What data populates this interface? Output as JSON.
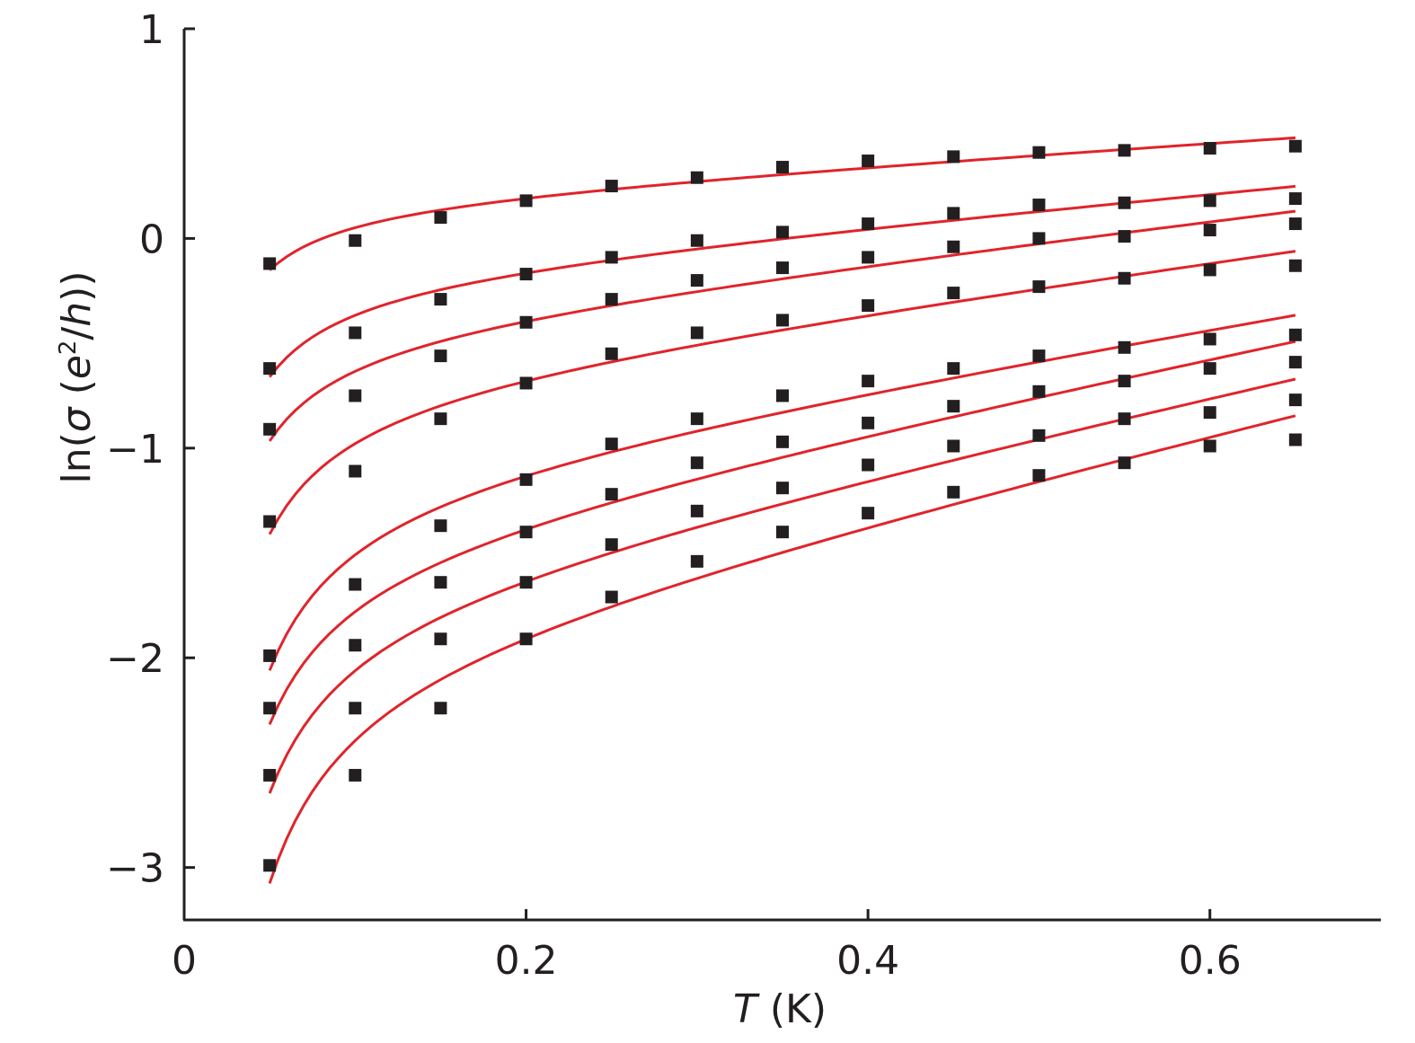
{
  "chart_data": {
    "type": "scatter",
    "xlim": [
      0,
      0.7
    ],
    "ylim": [
      -3.25,
      1
    ],
    "x_ticks": [
      {
        "value": 0,
        "label": "0"
      },
      {
        "value": 0.2,
        "label": "0.2"
      },
      {
        "value": 0.4,
        "label": "0.4"
      },
      {
        "value": 0.6,
        "label": "0.6"
      }
    ],
    "y_ticks": [
      {
        "value": 1,
        "label": "1"
      },
      {
        "value": 0,
        "label": "0"
      },
      {
        "value": -1,
        "label": "−1"
      },
      {
        "value": -2,
        "label": "−2"
      },
      {
        "value": -3,
        "label": "−3"
      }
    ],
    "xlabel": {
      "italic": "T",
      "rest": " (K)"
    },
    "ylabel": {
      "p1": "ln(",
      "sigma": "σ",
      "p2": " (",
      "e": "e",
      "sup": "2",
      "p3": "/",
      "h": "h",
      "p4": "))"
    },
    "grid": false,
    "legend": "none",
    "marker_color": "#231f20",
    "fit_color": "#e0242b",
    "x": [
      0.05,
      0.1,
      0.15,
      0.2,
      0.25,
      0.3,
      0.35,
      0.4,
      0.45,
      0.5,
      0.55,
      0.6,
      0.65
    ],
    "series": [
      {
        "values": [
          -0.12,
          -0.01,
          0.1,
          0.18,
          0.25,
          0.29,
          0.34,
          0.37,
          0.39,
          0.41,
          0.42,
          0.43,
          0.44
        ]
      },
      {
        "values": [
          -0.62,
          -0.45,
          -0.29,
          -0.17,
          -0.09,
          -0.01,
          0.03,
          0.07,
          0.12,
          0.16,
          0.17,
          0.18,
          0.19
        ]
      },
      {
        "values": [
          -0.91,
          -0.75,
          -0.56,
          -0.4,
          -0.29,
          -0.2,
          -0.14,
          -0.09,
          -0.04,
          0.0,
          0.01,
          0.04,
          0.07
        ]
      },
      {
        "values": [
          -1.35,
          -1.11,
          -0.86,
          -0.69,
          -0.55,
          -0.45,
          -0.39,
          -0.32,
          -0.26,
          -0.23,
          -0.19,
          -0.15,
          -0.13
        ]
      },
      {
        "values": [
          -1.99,
          -1.65,
          -1.37,
          -1.15,
          -0.98,
          -0.86,
          -0.75,
          -0.68,
          -0.62,
          -0.56,
          -0.52,
          -0.48,
          -0.46
        ]
      },
      {
        "values": [
          -2.24,
          -1.94,
          -1.64,
          -1.4,
          -1.22,
          -1.07,
          -0.97,
          -0.88,
          -0.8,
          -0.73,
          -0.68,
          -0.62,
          -0.59
        ]
      },
      {
        "values": [
          -2.56,
          -2.24,
          -1.91,
          -1.64,
          -1.46,
          -1.3,
          -1.19,
          -1.08,
          -0.99,
          -0.94,
          -0.86,
          -0.83,
          -0.77
        ]
      },
      {
        "values": [
          -2.99,
          -2.56,
          -2.24,
          -1.91,
          -1.71,
          -1.54,
          -1.4,
          -1.31,
          -1.21,
          -1.13,
          -1.07,
          -0.99,
          -0.96
        ]
      }
    ]
  }
}
